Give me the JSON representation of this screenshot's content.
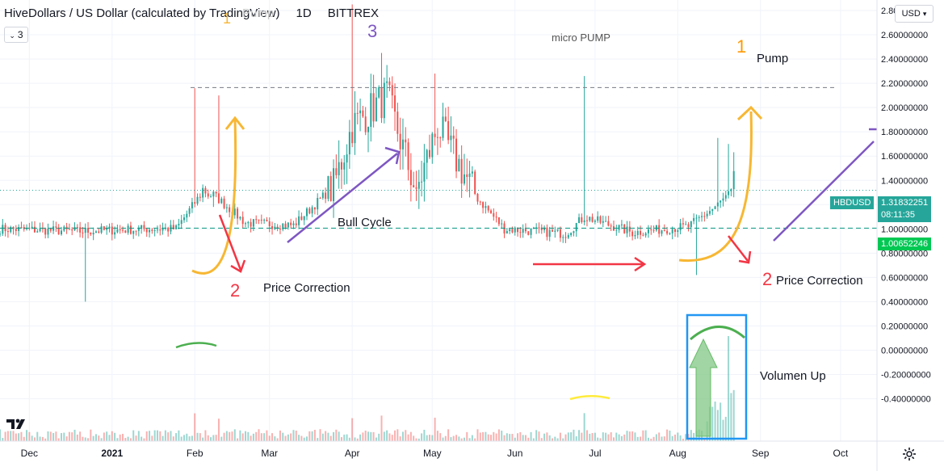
{
  "header": {
    "symbol_name": "HiveDollars / US Dollar (calculated by TradingView)",
    "interval": "1D",
    "exchange": "BITTREX",
    "indicator_count": "3"
  },
  "currency": "USD",
  "price_axis": {
    "ticks": [
      "2.80000000",
      "2.60000000",
      "2.40000000",
      "2.20000000",
      "2.00000000",
      "1.80000000",
      "1.60000000",
      "1.40000000",
      "1.20000000",
      "1.00000000",
      "0.80000000",
      "0.60000000",
      "0.40000000",
      "0.20000000",
      "0.00000000",
      "-0.20000000",
      "-0.40000000"
    ],
    "tick_values": [
      2.8,
      2.6,
      2.4,
      2.2,
      2.0,
      1.8,
      1.6,
      1.4,
      1.2,
      1.0,
      0.8,
      0.6,
      0.4,
      0.2,
      0.0,
      -0.2,
      -0.4
    ],
    "current_price": "1.31832251",
    "countdown": "08:11:35",
    "symbol_tag": "HBDUSD",
    "level_price": "1.00652246",
    "level_value": 1.00652246,
    "resistance_value": 2.165
  },
  "time_axis": {
    "labels": [
      "Dec",
      "2021",
      "Feb",
      "Mar",
      "Apr",
      "May",
      "Jun",
      "Jul",
      "Aug",
      "Sep",
      "Oct"
    ]
  },
  "annotations": {
    "micro_pump": "micro PUMP",
    "bull_cycle": "Bull Cycle",
    "price_correction_left": "Price Correction",
    "price_correction_right": "Price Correction",
    "pump": "Pump",
    "volume_up": "Volumen Up",
    "num_1_top": "1",
    "num_1_right": "1",
    "num_2_left": "2",
    "num_2_right": "2",
    "num_3": "3",
    "faded_header_text": "Pump"
  },
  "colors": {
    "up": "#26a69a",
    "down": "#ef5350",
    "level_line": "#089981",
    "purple": "#7e57c2",
    "orange": "#f7b733",
    "arrow_red": "#f23645",
    "green_marker": "#4caf50",
    "blue_box": "#2196f3",
    "grid": "#f0f3fa"
  },
  "chart_data": {
    "type": "candlestick",
    "symbol": "HBDUSD",
    "interval": "1D",
    "x_range": [
      "2020-11-20",
      "2021-10-08"
    ],
    "ylim": [
      -0.45,
      2.85
    ],
    "key_points": [
      {
        "date": "2020-11-20",
        "close": 1.0
      },
      {
        "date": "2020-12-20",
        "close": 0.98
      },
      {
        "date": "2021-01-15",
        "close": 1.0
      },
      {
        "date": "2021-01-25",
        "close": 1.0
      },
      {
        "date": "2021-02-05",
        "close": 1.34
      },
      {
        "date": "2021-02-20",
        "close": 1.05
      },
      {
        "date": "2021-03-10",
        "close": 1.03
      },
      {
        "date": "2021-03-25",
        "close": 1.35
      },
      {
        "date": "2021-04-01",
        "close": 1.85
      },
      {
        "date": "2021-04-14",
        "close": 2.1
      },
      {
        "date": "2021-04-25",
        "close": 1.3
      },
      {
        "date": "2021-05-03",
        "close": 1.85
      },
      {
        "date": "2021-05-18",
        "close": 1.25
      },
      {
        "date": "2021-05-28",
        "close": 1.0
      },
      {
        "date": "2021-06-20",
        "close": 0.96
      },
      {
        "date": "2021-06-27",
        "close": 1.1
      },
      {
        "date": "2021-07-15",
        "close": 0.97
      },
      {
        "date": "2021-08-05",
        "close": 1.02
      },
      {
        "date": "2021-08-15",
        "close": 1.18
      },
      {
        "date": "2021-08-22",
        "close": 1.32
      }
    ],
    "spikes": [
      {
        "date": "2021-02-01",
        "high": 2.16
      },
      {
        "date": "2021-02-10",
        "high": 2.1
      },
      {
        "date": "2021-04-01",
        "high": 2.85
      },
      {
        "date": "2021-04-12",
        "high": 2.45
      },
      {
        "date": "2021-05-02",
        "high": 2.28
      },
      {
        "date": "2021-06-27",
        "high": 2.26
      },
      {
        "date": "2021-08-16",
        "high": 1.75
      },
      {
        "date": "2021-08-20",
        "high": 1.7
      },
      {
        "date": "2020-12-22",
        "low": 0.4
      },
      {
        "date": "2021-08-08",
        "low": 0.62
      }
    ]
  }
}
